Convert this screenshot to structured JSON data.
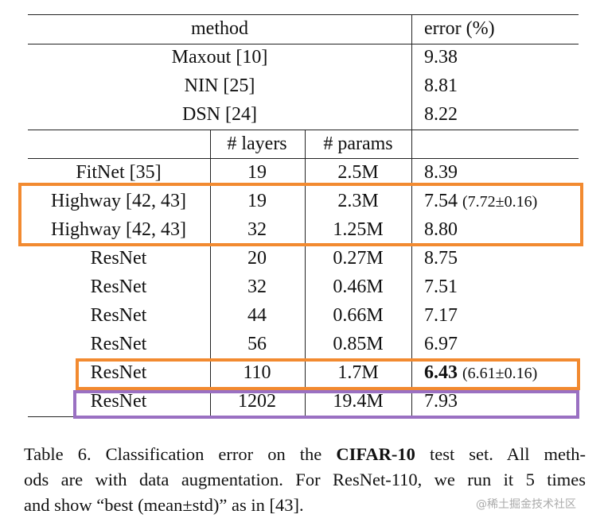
{
  "table": {
    "header": [
      "method",
      "error (%)"
    ],
    "top_rows": [
      [
        "Maxout [10]",
        "9.38"
      ],
      [
        "NIN [25]",
        "8.81"
      ],
      [
        "DSN [24]",
        "8.22"
      ]
    ],
    "subheader": [
      "# layers",
      "# params"
    ],
    "rows": [
      {
        "method": "FitNet [35]",
        "layers": "19",
        "params": "2.5M",
        "error": "8.39"
      },
      {
        "method": "Highway [42, 43]",
        "layers": "19",
        "params": "2.3M",
        "error": "7.54",
        "extra": "(7.72±0.16)"
      },
      {
        "method": "Highway [42, 43]",
        "layers": "32",
        "params": "1.25M",
        "error": "8.80"
      },
      {
        "method": "ResNet",
        "layers": "20",
        "params": "0.27M",
        "error": "8.75"
      },
      {
        "method": "ResNet",
        "layers": "32",
        "params": "0.46M",
        "error": "7.51"
      },
      {
        "method": "ResNet",
        "layers": "44",
        "params": "0.66M",
        "error": "7.17"
      },
      {
        "method": "ResNet",
        "layers": "56",
        "params": "0.85M",
        "error": "6.97"
      },
      {
        "method": "ResNet",
        "layers": "110",
        "params": "1.7M",
        "error": "6.43",
        "bold": true,
        "extra": "(6.61±0.16)"
      },
      {
        "method": "ResNet",
        "layers": "1202",
        "params": "19.4M",
        "error": "7.93"
      }
    ]
  },
  "caption": {
    "line1": [
      "Table 6. Classification error on the",
      "CIFAR-10",
      "test set.  All meth-"
    ],
    "line2": "ods are with data augmentation. For ResNet-110, we run it 5 times",
    "line3": "and show “best (mean±std)” as in [43]."
  },
  "watermark": "@稀土掘金技术社区"
}
